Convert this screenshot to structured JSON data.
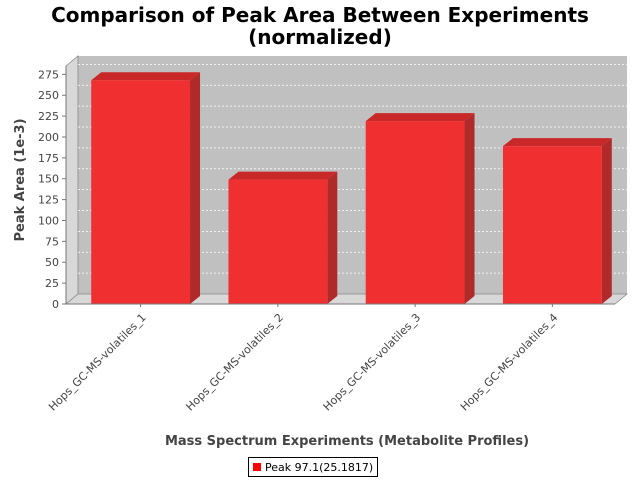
{
  "chart_data": {
    "type": "bar",
    "title_line1": "Comparison of Peak Area Between Experiments",
    "title_line2": "(normalized)",
    "xlabel": "Mass Spectrum Experiments (Metabolite Profiles)",
    "ylabel": "Peak Area (1e-3)",
    "categories": [
      "Hops_GC-MS-volatiles_1",
      "Hops_GC-MS-volatiles_2",
      "Hops_GC-MS-volatiles_3",
      "Hops_GC-MS-volatiles_4"
    ],
    "series": [
      {
        "name": "Peak 97.1(25.1817)",
        "values": [
          268,
          149,
          219,
          189
        ]
      }
    ],
    "ylim": [
      0,
      285
    ],
    "yticks": [
      "0",
      "25",
      "50",
      "75",
      "100",
      "125",
      "150",
      "175",
      "200",
      "225",
      "250",
      "275"
    ],
    "grid": true,
    "legend_position": "bottom",
    "colors": {
      "bar_front": "#f03030",
      "bar_top": "#c82828",
      "bar_side": "#b02a2a",
      "plot_background": "#c0c0c0",
      "plot_wall": "#d8d8d8"
    }
  }
}
